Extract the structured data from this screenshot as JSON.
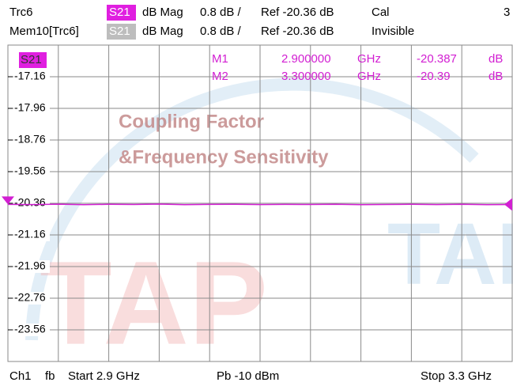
{
  "header": {
    "row1": {
      "trace": "Trc6",
      "param": "S21",
      "format": "dB Mag",
      "scale": "0.8 dB /",
      "ref": "Ref -20.36 dB",
      "status": "Cal",
      "channel": "3"
    },
    "row2": {
      "trace": "Mem10[Trc6]",
      "param": "S21",
      "format": "dB Mag",
      "scale": "0.8 dB /",
      "ref": "Ref -20.36 dB",
      "status": "Invisible"
    }
  },
  "footer": {
    "channel": "Ch1",
    "mode": "fb",
    "start": "Start 2.9 GHz",
    "power": "Pb -10 dBm",
    "stop": "Stop 3.3 GHz"
  },
  "watermarks": [
    "Coupling Factor",
    "&Frequency Sensitivity",
    "TAP",
    "TAP"
  ],
  "chart_data": {
    "type": "line",
    "trace_label": "S21",
    "xlim": [
      2.9,
      3.3
    ],
    "ylim": [
      -24.36,
      -16.36
    ],
    "yticks": [
      -17.16,
      -17.96,
      -18.76,
      -19.56,
      -20.36,
      -21.16,
      -21.96,
      -22.76,
      -23.56
    ],
    "grid": true,
    "x": [
      2.9,
      2.92,
      2.94,
      2.96,
      2.98,
      3.0,
      3.02,
      3.04,
      3.06,
      3.08,
      3.1,
      3.12,
      3.14,
      3.16,
      3.18,
      3.2,
      3.22,
      3.24,
      3.26,
      3.28,
      3.3
    ],
    "series": [
      {
        "name": "S21",
        "color": "#d21fd2",
        "values": [
          -20.387,
          -20.392,
          -20.383,
          -20.395,
          -20.386,
          -20.39,
          -20.381,
          -20.394,
          -20.388,
          -20.385,
          -20.393,
          -20.387,
          -20.391,
          -20.384,
          -20.396,
          -20.389,
          -20.386,
          -20.392,
          -20.385,
          -20.394,
          -20.39
        ]
      }
    ],
    "markers": [
      {
        "name": "M1",
        "freq": {
          "value": 2.9,
          "label": "2.900000"
        },
        "unit": "GHz",
        "value": -20.387,
        "value_unit": "dB"
      },
      {
        "name": "M2",
        "freq": {
          "value": 3.3,
          "label": "3.300000"
        },
        "unit": "GHz",
        "value": -20.39,
        "value_unit": "dB"
      }
    ]
  }
}
